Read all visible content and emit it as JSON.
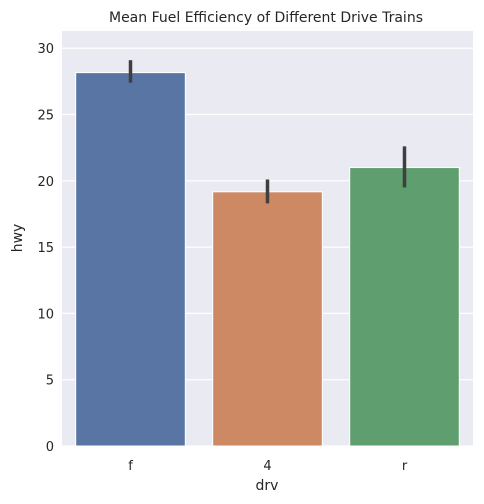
{
  "chart_data": {
    "type": "bar",
    "title": "Mean Fuel Efficiency of Different Drive Trains",
    "xlabel": "drv",
    "ylabel": "hwy",
    "categories": [
      "f",
      "4",
      "r"
    ],
    "values": [
      28.16,
      19.17,
      21.0
    ],
    "error_bars": [
      {
        "low": 27.4,
        "high": 29.1
      },
      {
        "low": 18.3,
        "high": 20.1
      },
      {
        "low": 19.5,
        "high": 22.6
      }
    ],
    "ylim": [
      0,
      31.3
    ],
    "yticks": [
      0,
      5,
      10,
      15,
      20,
      25,
      30
    ],
    "grid": true,
    "colors": [
      "#5875a4",
      "#cc8963",
      "#5f9e6e"
    ],
    "background": "#eaeaf2",
    "errorbar_color": "#3f3f3f"
  }
}
